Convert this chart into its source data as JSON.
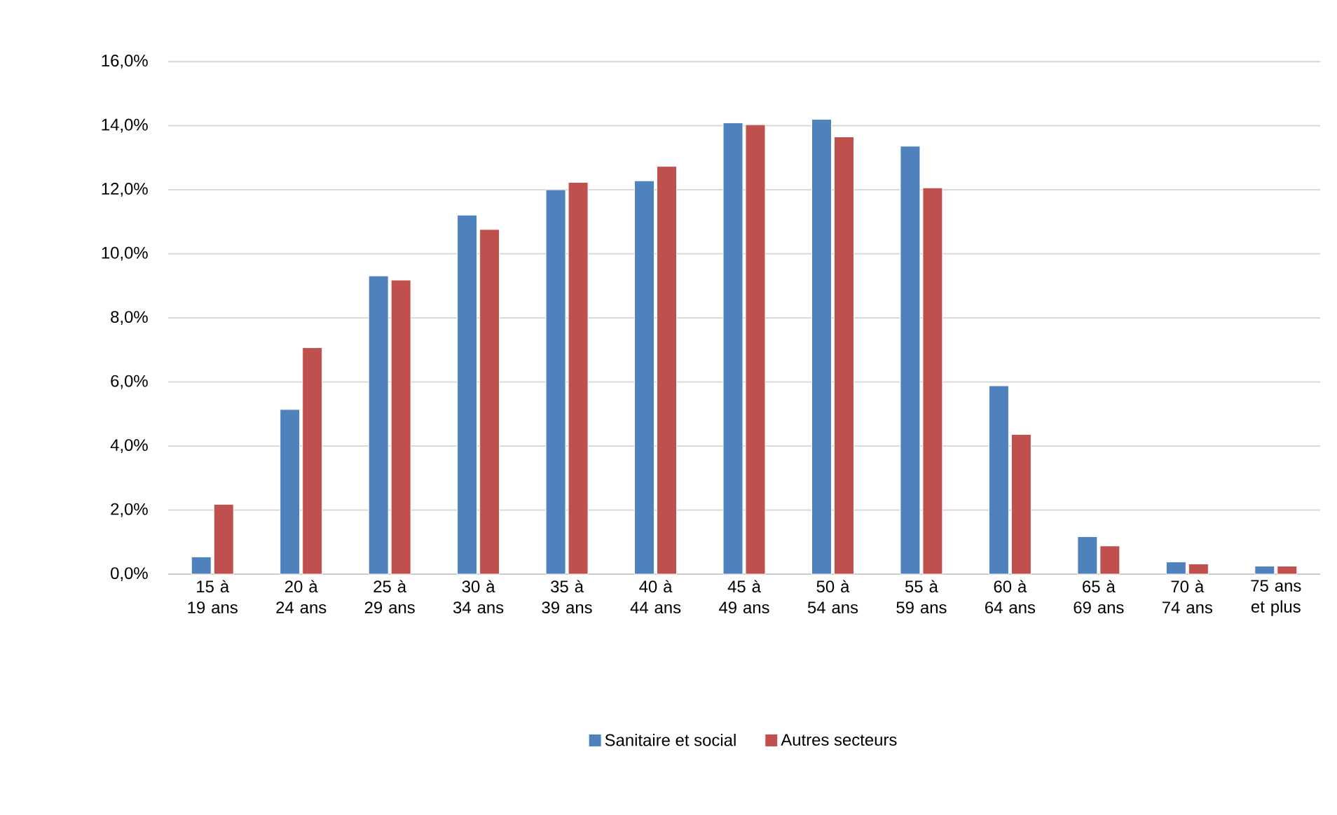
{
  "chart_data": {
    "type": "bar",
    "categories": [
      "15 à 19 ans",
      "20 à 24 ans",
      "25 à 29 ans",
      "30 à 34 ans",
      "35 à 39 ans",
      "40 à 44 ans",
      "45 à 49 ans",
      "50 à 54 ans",
      "55 à 59 ans",
      "60 à 64 ans",
      "65 à 69 ans",
      "70 à 74 ans",
      "75 ans et plus"
    ],
    "series": [
      {
        "name": "Sanitaire et social",
        "color": "#4f81bd",
        "values": [
          0.54,
          5.14,
          9.31,
          11.21,
          12.0,
          12.28,
          14.09,
          14.2,
          13.36,
          5.88,
          1.17,
          0.38,
          0.25
        ]
      },
      {
        "name": "Autres secteurs",
        "color": "#c0504d",
        "values": [
          2.18,
          7.07,
          9.18,
          10.76,
          12.23,
          12.73,
          14.03,
          13.65,
          12.06,
          4.36,
          0.88,
          0.32,
          0.25
        ]
      }
    ],
    "ylim": [
      0,
      16
    ],
    "yticks": [
      {
        "value": 0,
        "label": "0,0%"
      },
      {
        "value": 2,
        "label": "2,0%"
      },
      {
        "value": 4,
        "label": "4,0%"
      },
      {
        "value": 6,
        "label": "6,0%"
      },
      {
        "value": 8,
        "label": "8,0%"
      },
      {
        "value": 10,
        "label": "10,0%"
      },
      {
        "value": 12,
        "label": "12,0%"
      },
      {
        "value": 14,
        "label": "14,0%"
      },
      {
        "value": 16,
        "label": "16,0%"
      }
    ],
    "grid": "y",
    "legend": "bottom"
  }
}
